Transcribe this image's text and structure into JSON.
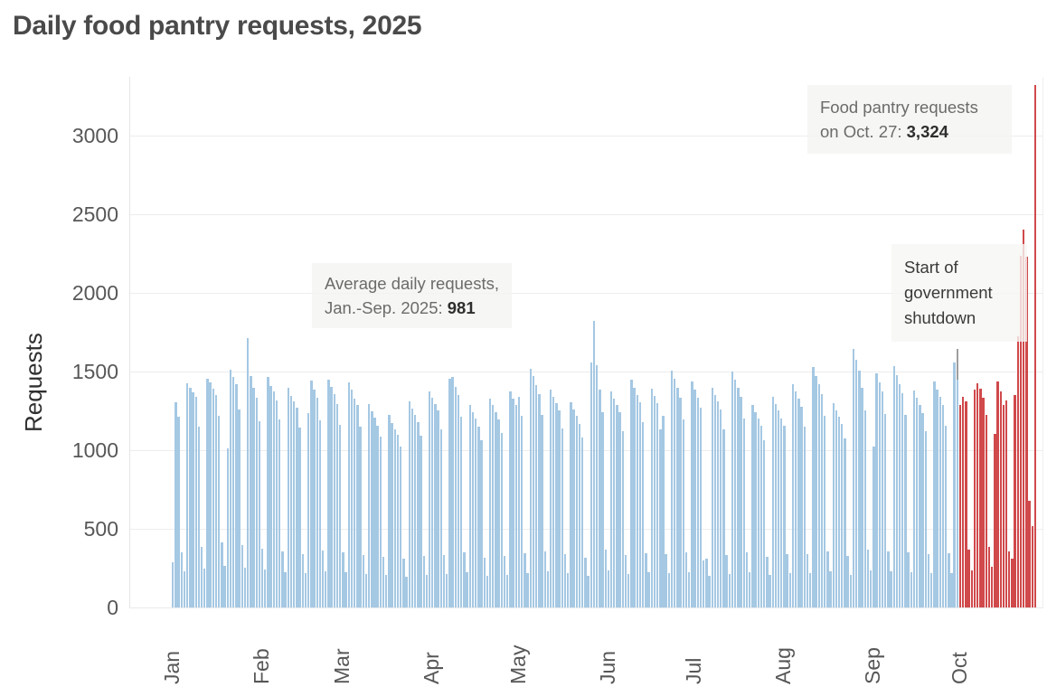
{
  "title": "Daily food pantry requests, 2025",
  "y_axis": {
    "label": "Requests",
    "ticks": [
      0,
      500,
      1000,
      1500,
      2000,
      2500,
      3000
    ]
  },
  "x_axis": {
    "month_labels": [
      "Jan",
      "Feb",
      "Mar",
      "Apr",
      "May",
      "Jun",
      "Jul",
      "Aug",
      "Sep",
      "Oct"
    ]
  },
  "annotations": {
    "oct27": {
      "line1": "Food pantry requests",
      "line2_prefix": "on Oct. 27: ",
      "line2_value": "3,324"
    },
    "average": {
      "line1": "Average daily requests,",
      "line2_prefix": "Jan.-Sep. 2025: ",
      "line2_value": "981"
    },
    "shutdown": {
      "line1": "Start of",
      "line2": "government",
      "line3": "shutdown"
    }
  },
  "colors": {
    "regular_bar": "#a5c8e3",
    "shutdown_bar": "#d0494b",
    "marker_line": "#9e9e9e",
    "grid": "#ededed"
  },
  "chart_data": {
    "type": "bar",
    "title": "Daily food pantry requests, 2025",
    "xlabel": "",
    "ylabel": "Requests",
    "ylim": [
      0,
      3400
    ],
    "yticks": [
      0,
      500,
      1000,
      1500,
      2000,
      2500,
      3000
    ],
    "grid": "horizontal",
    "legend": "none",
    "start_date": "2025-01-01",
    "months": [
      "Jan",
      "Feb",
      "Mar",
      "Apr",
      "May",
      "Jun",
      "Jul",
      "Aug",
      "Sep",
      "Oct"
    ],
    "days_per_month": [
      31,
      28,
      31,
      30,
      31,
      30,
      31,
      31,
      30,
      27
    ],
    "highlights": {
      "oct_27_requests": 3324,
      "average_daily_jan_sep": 981,
      "shutdown_start": "Oct 1"
    },
    "series": [
      {
        "name": "Daily requests, Jan.-Sep. 2025",
        "color": "#a5c8e3",
        "values": [
          285,
          1302,
          1210,
          352,
          228,
          1425,
          1398,
          1367,
          1340,
          1152,
          388,
          246,
          1452,
          1430,
          1389,
          1352,
          1216,
          414,
          262,
          1010,
          1512,
          1468,
          1422,
          1260,
          398,
          252,
          1710,
          1472,
          1398,
          1336,
          1184,
          372,
          240,
          1466,
          1410,
          1372,
          1318,
          1198,
          356,
          226,
          1394,
          1346,
          1312,
          1270,
          1146,
          342,
          218,
          1238,
          1442,
          1388,
          1332,
          1190,
          362,
          232,
          1448,
          1402,
          1356,
          1296,
          1162,
          348,
          222,
          1432,
          1384,
          1330,
          1286,
          1150,
          336,
          214,
          1292,
          1248,
          1208,
          1158,
          1086,
          322,
          206,
          1226,
          1174,
          1130,
          1096,
          1022,
          312,
          198,
          1312,
          1266,
          1224,
          1180,
          1092,
          328,
          208,
          1372,
          1332,
          1296,
          1252,
          1132,
          334,
          212,
          1452,
          1468,
          1402,
          1348,
          1212,
          352,
          226,
          1288,
          1244,
          1204,
          1152,
          1062,
          318,
          202,
          1328,
          1286,
          1244,
          1198,
          1108,
          326,
          208,
          1372,
          1330,
          1286,
          1342,
          1218,
          344,
          220,
          1518,
          1472,
          1416,
          1356,
          1222,
          358,
          230,
          1388,
          1340,
          1298,
          1252,
          1136,
          338,
          216,
          1302,
          1258,
          1216,
          1166,
          1078,
          316,
          202,
          1560,
          1820,
          1540,
          1388,
          1242,
          368,
          234,
          1374,
          1330,
          1288,
          1240,
          1118,
          334,
          212,
          1446,
          1398,
          1352,
          1304,
          1176,
          346,
          222,
          1392,
          1344,
          1300,
          1132,
          1216,
          342,
          218,
          1508,
          1452,
          1396,
          1336,
          1198,
          352,
          226,
          1436,
          1386,
          1336,
          1268,
          298,
          312,
          204,
          1398,
          1352,
          1308,
          1256,
          1134,
          336,
          214,
          1502,
          1448,
          1394,
          1338,
          1202,
          350,
          224,
          1286,
          1242,
          1200,
          1154,
          1066,
          324,
          206,
          1342,
          1296,
          1252,
          1202,
          1158,
          340,
          216,
          1422,
          1376,
          1328,
          1276,
          1148,
          342,
          218,
          1528,
          1474,
          1418,
          1356,
          1218,
          354,
          228,
          1298,
          1254,
          1212,
          1164,
          1074,
          326,
          208,
          1642,
          1576,
          1506,
          1398,
          1252,
          366,
          236,
          1022,
          1488,
          1432,
          1372,
          1232,
          356,
          228,
          1532,
          1476,
          1420,
          1360,
          1222,
          350,
          224,
          1378,
          1332,
          1288,
          1238,
          1118,
          338,
          216,
          1436,
          1388,
          1340,
          1286,
          1156,
          344,
          220,
          1556,
          1448
        ]
      },
      {
        "name": "Daily requests, Oct. 1-27, 2025 (government shutdown)",
        "color": "#d0494b",
        "values": [
          1288,
          1342,
          1310,
          368,
          238,
          1384,
          1428,
          1390,
          1336,
          1224,
          386,
          256,
          1102,
          1434,
          1376,
          1288,
          1318,
          356,
          308,
          1348,
          1722,
          2238,
          2402,
          2232,
          678,
          518,
          3324
        ]
      }
    ]
  }
}
